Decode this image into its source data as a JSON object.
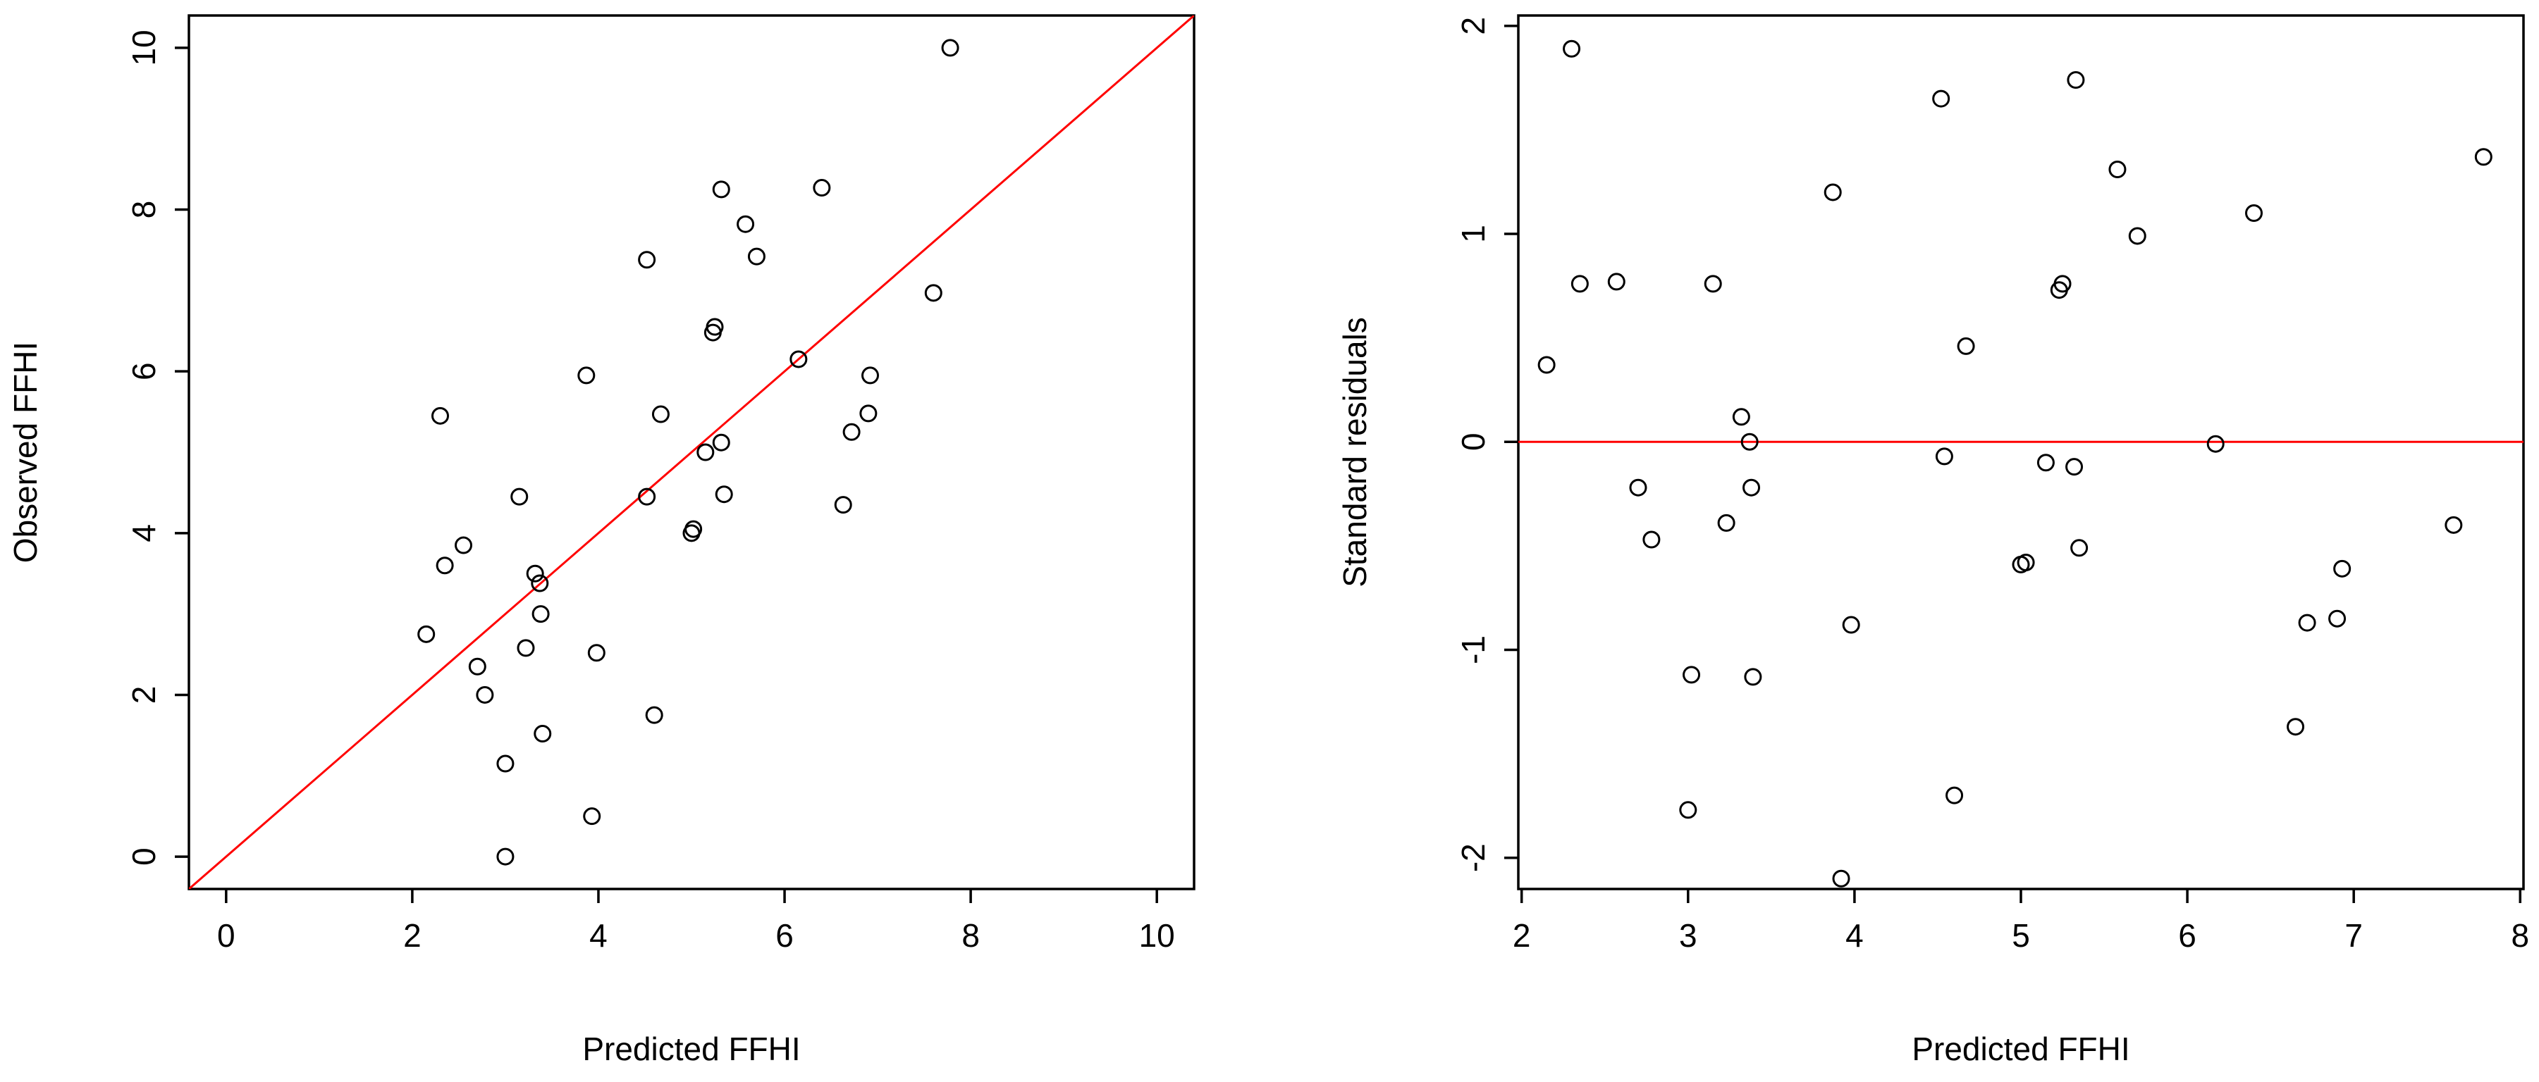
{
  "chart_data": [
    {
      "type": "scatter",
      "title": "",
      "xlabel": "Predicted FFHI",
      "ylabel": "Observed FFHI",
      "xlim": [
        -0.4,
        10.4
      ],
      "ylim": [
        -0.4,
        10.4
      ],
      "xticks": [
        "0",
        "2",
        "4",
        "6",
        "8",
        "10"
      ],
      "yticks": [
        "0",
        "2",
        "4",
        "6",
        "8",
        "10"
      ],
      "reference_line": {
        "type": "identity",
        "slope": 1,
        "intercept": 0,
        "color": "#ff0000"
      },
      "grid": false,
      "legend": "none",
      "point_style": "open-circle",
      "points": [
        {
          "x": 2.15,
          "y": 2.75
        },
        {
          "x": 2.3,
          "y": 5.45
        },
        {
          "x": 2.35,
          "y": 3.6
        },
        {
          "x": 2.55,
          "y": 3.85
        },
        {
          "x": 2.7,
          "y": 2.35
        },
        {
          "x": 2.78,
          "y": 2.0
        },
        {
          "x": 3.0,
          "y": 1.15
        },
        {
          "x": 3.0,
          "y": 0.0
        },
        {
          "x": 3.15,
          "y": 4.45
        },
        {
          "x": 3.22,
          "y": 2.58
        },
        {
          "x": 3.32,
          "y": 3.5
        },
        {
          "x": 3.37,
          "y": 3.38
        },
        {
          "x": 3.38,
          "y": 3.0
        },
        {
          "x": 3.4,
          "y": 1.52
        },
        {
          "x": 3.87,
          "y": 5.95
        },
        {
          "x": 3.93,
          "y": 0.5
        },
        {
          "x": 3.98,
          "y": 2.52
        },
        {
          "x": 4.52,
          "y": 7.38
        },
        {
          "x": 4.52,
          "y": 4.45
        },
        {
          "x": 4.6,
          "y": 1.75
        },
        {
          "x": 4.67,
          "y": 5.47
        },
        {
          "x": 5.0,
          "y": 4.0
        },
        {
          "x": 5.02,
          "y": 4.05
        },
        {
          "x": 5.15,
          "y": 5.0
        },
        {
          "x": 5.23,
          "y": 6.48
        },
        {
          "x": 5.25,
          "y": 6.55
        },
        {
          "x": 5.32,
          "y": 8.25
        },
        {
          "x": 5.32,
          "y": 5.12
        },
        {
          "x": 5.35,
          "y": 4.48
        },
        {
          "x": 5.58,
          "y": 7.82
        },
        {
          "x": 5.7,
          "y": 7.42
        },
        {
          "x": 6.15,
          "y": 6.15
        },
        {
          "x": 6.4,
          "y": 8.27
        },
        {
          "x": 6.63,
          "y": 4.35
        },
        {
          "x": 6.72,
          "y": 5.25
        },
        {
          "x": 6.9,
          "y": 5.48
        },
        {
          "x": 6.92,
          "y": 5.95
        },
        {
          "x": 7.6,
          "y": 6.97
        },
        {
          "x": 7.78,
          "y": 10.0
        }
      ]
    },
    {
      "type": "scatter",
      "title": "",
      "xlabel": "Predicted FFHI",
      "ylabel": "Standard residuals",
      "xlim": [
        1.98,
        8.02
      ],
      "ylim": [
        -2.15,
        2.05
      ],
      "xticks": [
        "2",
        "3",
        "4",
        "5",
        "6",
        "7",
        "8"
      ],
      "yticks": [
        "-2",
        "-1",
        "0",
        "1",
        "2"
      ],
      "reference_line": {
        "type": "horizontal",
        "y": 0,
        "color": "#ff0000"
      },
      "grid": false,
      "legend": "none",
      "point_style": "open-circle",
      "points": [
        {
          "x": 2.15,
          "y": 0.37
        },
        {
          "x": 2.3,
          "y": 1.89
        },
        {
          "x": 2.35,
          "y": 0.76
        },
        {
          "x": 2.57,
          "y": 0.77
        },
        {
          "x": 2.7,
          "y": -0.22
        },
        {
          "x": 2.78,
          "y": -0.47
        },
        {
          "x": 3.0,
          "y": -1.77
        },
        {
          "x": 3.02,
          "y": -1.12
        },
        {
          "x": 3.15,
          "y": 0.76
        },
        {
          "x": 3.23,
          "y": -0.39
        },
        {
          "x": 3.32,
          "y": 0.12
        },
        {
          "x": 3.37,
          "y": 0.0
        },
        {
          "x": 3.38,
          "y": -0.22
        },
        {
          "x": 3.39,
          "y": -1.13
        },
        {
          "x": 3.87,
          "y": 1.2
        },
        {
          "x": 3.92,
          "y": -2.1
        },
        {
          "x": 3.98,
          "y": -0.88
        },
        {
          "x": 4.52,
          "y": 1.65
        },
        {
          "x": 4.54,
          "y": -0.07
        },
        {
          "x": 4.6,
          "y": -1.7
        },
        {
          "x": 4.67,
          "y": 0.46
        },
        {
          "x": 5.0,
          "y": -0.59
        },
        {
          "x": 5.03,
          "y": -0.58
        },
        {
          "x": 5.15,
          "y": -0.1
        },
        {
          "x": 5.23,
          "y": 0.73
        },
        {
          "x": 5.25,
          "y": 0.76
        },
        {
          "x": 5.32,
          "y": -0.12
        },
        {
          "x": 5.33,
          "y": 1.74
        },
        {
          "x": 5.35,
          "y": -0.51
        },
        {
          "x": 5.58,
          "y": 1.31
        },
        {
          "x": 5.7,
          "y": 0.99
        },
        {
          "x": 6.17,
          "y": -0.01
        },
        {
          "x": 6.4,
          "y": 1.1
        },
        {
          "x": 6.65,
          "y": -1.37
        },
        {
          "x": 6.72,
          "y": -0.87
        },
        {
          "x": 6.9,
          "y": -0.85
        },
        {
          "x": 6.93,
          "y": -0.61
        },
        {
          "x": 7.6,
          "y": -0.4
        },
        {
          "x": 7.78,
          "y": 1.37
        }
      ]
    }
  ]
}
